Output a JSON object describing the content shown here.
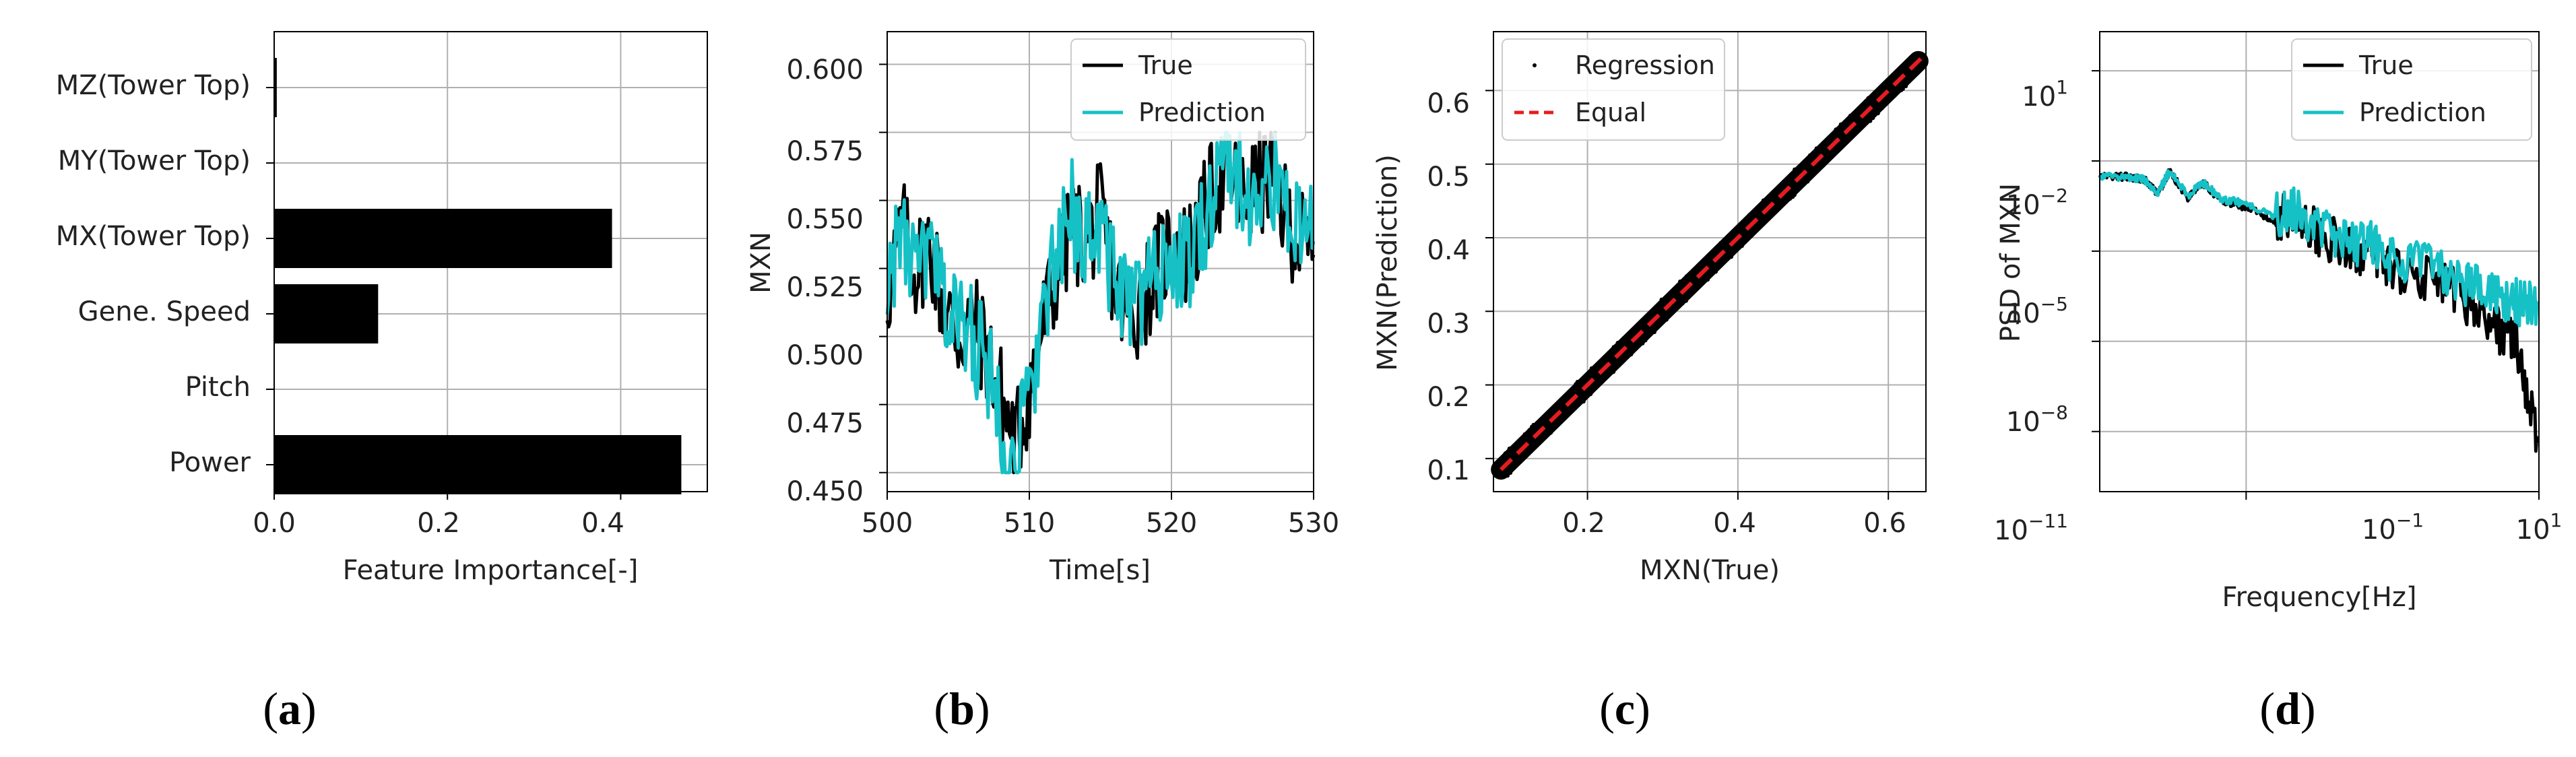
{
  "colors": {
    "true": "#000000",
    "prediction": "#16c1c6",
    "equal": "#e81c1c",
    "grid": "#b0b0b0"
  },
  "panel_labels": [
    {
      "open": "(",
      "letter": "a",
      "close": ")"
    },
    {
      "open": "(",
      "letter": "b",
      "close": ")"
    },
    {
      "open": "(",
      "letter": "c",
      "close": ")"
    },
    {
      "open": "(",
      "letter": "d",
      "close": ")"
    }
  ],
  "chart_data": [
    {
      "type": "bar",
      "orientation": "horizontal",
      "categories": [
        "Power",
        "Pitch",
        "Gene. Speed",
        "MX(Tower Top)",
        "MY(Tower Top)",
        "MZ(Tower Top)"
      ],
      "values": [
        0.47,
        0.0,
        0.12,
        0.39,
        0.0,
        0.003
      ],
      "xlabel": "Feature Importance[-]",
      "ylabel": "",
      "xlim": [
        0.0,
        0.5
      ],
      "xticks": [
        "0.0",
        "0.2",
        "0.4"
      ],
      "grid": true
    },
    {
      "type": "line",
      "xlabel": "Time[s]",
      "ylabel": "MXN",
      "xlim": [
        500,
        530
      ],
      "ylim": [
        0.443,
        0.612
      ],
      "xticks": [
        "500",
        "510",
        "520",
        "530"
      ],
      "yticks": [
        "0.450",
        "0.475",
        "0.500",
        "0.525",
        "0.550",
        "0.575",
        "0.600"
      ],
      "legend": "top-right",
      "grid": true,
      "x": [
        500,
        501,
        502,
        503,
        504,
        505,
        506,
        507,
        508,
        509,
        510,
        511,
        512,
        513,
        514,
        515,
        516,
        517,
        518,
        519,
        520,
        521,
        522,
        523,
        524,
        525,
        526,
        527,
        528,
        529,
        530
      ],
      "series": [
        {
          "name": "True",
          "values": [
            0.515,
            0.54,
            0.525,
            0.535,
            0.51,
            0.5,
            0.505,
            0.495,
            0.478,
            0.46,
            0.48,
            0.505,
            0.525,
            0.54,
            0.535,
            0.545,
            0.52,
            0.505,
            0.515,
            0.525,
            0.535,
            0.53,
            0.54,
            0.555,
            0.56,
            0.55,
            0.555,
            0.56,
            0.545,
            0.535,
            0.53
          ]
        },
        {
          "name": "Prediction",
          "values": [
            0.52,
            0.538,
            0.522,
            0.53,
            0.512,
            0.505,
            0.5,
            0.49,
            0.47,
            0.455,
            0.478,
            0.51,
            0.528,
            0.545,
            0.538,
            0.54,
            0.522,
            0.508,
            0.518,
            0.52,
            0.53,
            0.525,
            0.538,
            0.55,
            0.57,
            0.552,
            0.55,
            0.558,
            0.548,
            0.54,
            0.535
          ]
        }
      ]
    },
    {
      "type": "scatter",
      "xlabel": "MXN(True)",
      "ylabel": "MXN(Prediction)",
      "xlim": [
        0.075,
        0.65
      ],
      "ylim": [
        0.055,
        0.68
      ],
      "xticks": [
        "0.2",
        "0.4",
        "0.6"
      ],
      "yticks": [
        "0.1",
        "0.2",
        "0.3",
        "0.4",
        "0.5",
        "0.6"
      ],
      "legend": "top-left",
      "grid": true,
      "series": [
        {
          "name": "Regression",
          "x": [
            0.085,
            0.65
          ],
          "y": [
            0.085,
            0.65
          ]
        },
        {
          "name": "Equal",
          "x": [
            0.085,
            0.65
          ],
          "y": [
            0.085,
            0.65
          ]
        }
      ]
    },
    {
      "type": "line",
      "scale": "log-log",
      "xlabel": "Frequency[Hz]",
      "ylabel": "PSD of MXN",
      "xlim": [
        0.01,
        10
      ],
      "ylim": [
        1e-13,
        200
      ],
      "xticks": [
        {
          "base": "10",
          "exp": "−1"
        },
        {
          "base": "10",
          "exp": "1"
        }
      ],
      "yticks": [
        {
          "base": "10",
          "exp": "1"
        },
        {
          "base": "10",
          "exp": "−2"
        },
        {
          "base": "10",
          "exp": "−5"
        },
        {
          "base": "10",
          "exp": "−8"
        },
        {
          "base": "10",
          "exp": "−11"
        }
      ],
      "legend": "top-right",
      "grid": true,
      "x": [
        0.01,
        0.015,
        0.02,
        0.025,
        0.03,
        0.04,
        0.05,
        0.07,
        0.1,
        0.15,
        0.2,
        0.3,
        0.5,
        0.7,
        1.0,
        2.0,
        3.0,
        5.0,
        7.0,
        10.0
      ],
      "series": [
        {
          "name": "True",
          "values": [
            0.003,
            0.003,
            0.0025,
            0.0008,
            0.0045,
            0.0006,
            0.002,
            0.0004,
            0.0003,
            0.0001,
            0.0002,
            5e-05,
            1e-05,
            1e-05,
            3e-06,
            1e-06,
            3e-07,
            3e-08,
            1e-08,
            3e-12
          ]
        },
        {
          "name": "Prediction",
          "values": [
            0.003,
            0.003,
            0.0025,
            0.0009,
            0.0045,
            0.0007,
            0.002,
            0.0005,
            0.0004,
            0.00015,
            0.0003,
            8e-05,
            2e-05,
            2e-05,
            5e-06,
            3e-06,
            1e-06,
            3e-07,
            2e-07,
            2e-07
          ]
        }
      ]
    }
  ]
}
